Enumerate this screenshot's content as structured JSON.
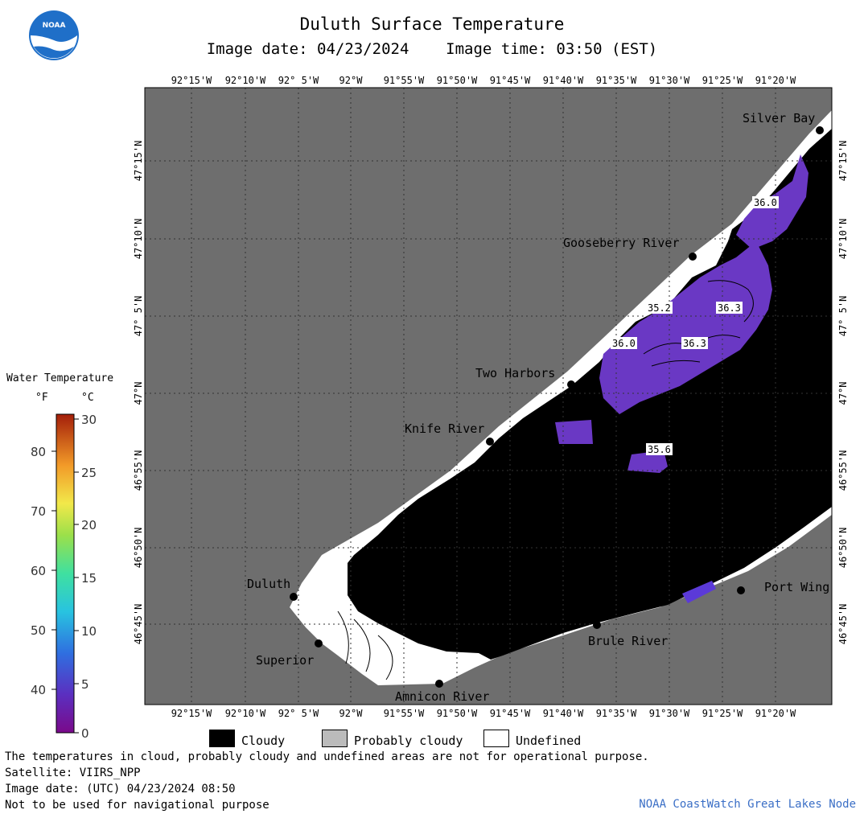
{
  "header": {
    "title": "Duluth Surface Temperature",
    "subtitle": "Image date: 04/23/2024    Image time: 03:50 (EST)"
  },
  "logo": {
    "text": "NOAA"
  },
  "map": {
    "lon_labels": [
      "92°15'W",
      "92°10'W",
      "92° 5'W",
      "92°W",
      "91°55'W",
      "91°50'W",
      "91°45'W",
      "91°40'W",
      "91°35'W",
      "91°30'W",
      "91°25'W",
      "91°20'W"
    ],
    "lat_labels": [
      "47°15'N",
      "47°10'N",
      "47° 5'N",
      "47°N",
      "46°55'N",
      "46°50'N",
      "46°45'N"
    ],
    "places": [
      "Silver Bay",
      "Gooseberry River",
      "Two Harbors",
      "Knife River",
      "Duluth",
      "Superior",
      "Amnicon River",
      "Brule River",
      "Port Wing"
    ],
    "temperature_labels": [
      "36.0",
      "35.2",
      "36.3",
      "36.0",
      "36.3",
      "35.6"
    ],
    "colors": {
      "land": "#6e6e6e",
      "cloudy": "#000000",
      "probably_cloudy": "#bbbbbb",
      "undefined": "#ffffff",
      "water_36": "#6a38c4",
      "grid": "#333333"
    }
  },
  "legend": {
    "title": "Water Temperature",
    "unit_f": "°F",
    "unit_c": "°C",
    "f_ticks": [
      "80",
      "70",
      "60",
      "50",
      "40"
    ],
    "c_ticks": [
      "30",
      "25",
      "20",
      "15",
      "10",
      "5",
      "0"
    ],
    "keys": [
      "Cloudy",
      "Probably cloudy",
      "Undefined"
    ]
  },
  "footer": {
    "note": "The temperatures in cloud, probably cloudy and undefined areas are not for operational purpose.",
    "satellite": "Satellite: VIIRS_NPP",
    "utc_date": "Image date: (UTC) 04/23/2024  08:50",
    "nav_warning": "Not to be used for navigational purpose",
    "credit": "NOAA CoastWatch Great Lakes Node"
  }
}
